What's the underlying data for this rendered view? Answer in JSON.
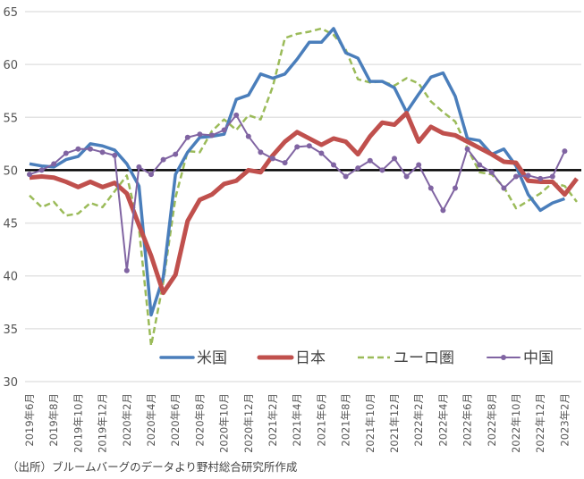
{
  "chart_data": {
    "type": "line",
    "title": "",
    "xlabel": "",
    "ylabel": "",
    "ylim": [
      30,
      65
    ],
    "yticks": [
      30,
      35,
      40,
      45,
      50,
      55,
      60,
      65
    ],
    "reference_line": 50,
    "grid": true,
    "legend_position": "bottom-inside",
    "x_tick_labels": [
      "2019年6月",
      "2019年8月",
      "2019年10月",
      "2019年12月",
      "2020年2月",
      "2020年4月",
      "2020年6月",
      "2020年8月",
      "2020年10月",
      "2020年12月",
      "2021年2月",
      "2021年4月",
      "2021年6月",
      "2021年8月",
      "2021年10月",
      "2021年12月",
      "2022年2月",
      "2022年4月",
      "2022年6月",
      "2022年8月",
      "2022年10月",
      "2022年12月",
      "2023年2月"
    ],
    "x_start": "2019年6月",
    "x_end": "2023年3月",
    "series": [
      {
        "name": "米国",
        "color": "#4a7ebb",
        "style": "solid",
        "values": [
          50.6,
          50.4,
          50.3,
          51.0,
          51.3,
          52.5,
          52.3,
          51.9,
          50.6,
          48.5,
          36.3,
          39.9,
          49.6,
          51.7,
          53.1,
          53.2,
          53.4,
          56.7,
          57.1,
          59.1,
          58.7,
          59.1,
          60.5,
          62.1,
          62.1,
          63.4,
          61.1,
          60.6,
          58.4,
          58.4,
          57.8,
          55.5,
          57.2,
          58.8,
          59.2,
          57.0,
          53.0,
          52.8,
          51.5,
          52.0,
          50.4,
          47.7,
          46.2,
          46.9,
          47.3
        ]
      },
      {
        "name": "日本",
        "color": "#c0504d",
        "style": "solid-thick",
        "values": [
          49.3,
          49.4,
          49.3,
          48.9,
          48.4,
          48.9,
          48.4,
          48.8,
          47.8,
          44.8,
          41.9,
          38.4,
          40.1,
          45.2,
          47.2,
          47.7,
          48.7,
          49.0,
          50.0,
          49.8,
          51.4,
          52.7,
          53.6,
          53.0,
          52.4,
          53.0,
          52.7,
          51.5,
          53.2,
          54.5,
          54.3,
          55.4,
          52.7,
          54.1,
          53.5,
          53.3,
          52.7,
          52.1,
          51.5,
          50.8,
          50.7,
          49.0,
          48.9,
          48.9,
          47.7,
          49.2
        ]
      },
      {
        "name": "ユーロ圏",
        "color": "#9bbb59",
        "style": "dashed",
        "values": [
          47.6,
          46.5,
          47.0,
          45.7,
          45.9,
          46.9,
          46.5,
          48.0,
          49.5,
          44.5,
          33.4,
          39.4,
          47.4,
          51.8,
          51.7,
          53.7,
          54.8,
          53.8,
          55.2,
          54.8,
          57.9,
          62.5,
          62.9,
          63.1,
          63.4,
          62.8,
          61.4,
          58.6,
          58.3,
          58.4,
          58.0,
          58.7,
          58.2,
          56.5,
          55.5,
          54.6,
          52.1,
          49.8,
          49.6,
          48.4,
          46.4,
          47.1,
          47.8,
          48.8,
          48.5,
          47.0
        ]
      },
      {
        "name": "中国",
        "color": "#8064a2",
        "style": "solid-markers",
        "values": [
          49.6,
          50.0,
          50.6,
          51.6,
          52.0,
          52.0,
          51.7,
          51.4,
          40.5,
          50.3,
          49.6,
          51.0,
          51.5,
          53.1,
          53.4,
          53.3,
          53.8,
          55.2,
          53.2,
          51.7,
          51.1,
          50.7,
          52.2,
          52.3,
          51.6,
          50.5,
          49.4,
          50.2,
          50.9,
          50.0,
          51.1,
          49.4,
          50.5,
          48.3,
          46.2,
          48.3,
          52.0,
          50.5,
          49.8,
          48.3,
          49.4,
          49.5,
          49.2,
          49.4,
          51.8
        ]
      }
    ]
  },
  "source_note": "（出所）ブルームバーグのデータより野村総合研究所作成"
}
